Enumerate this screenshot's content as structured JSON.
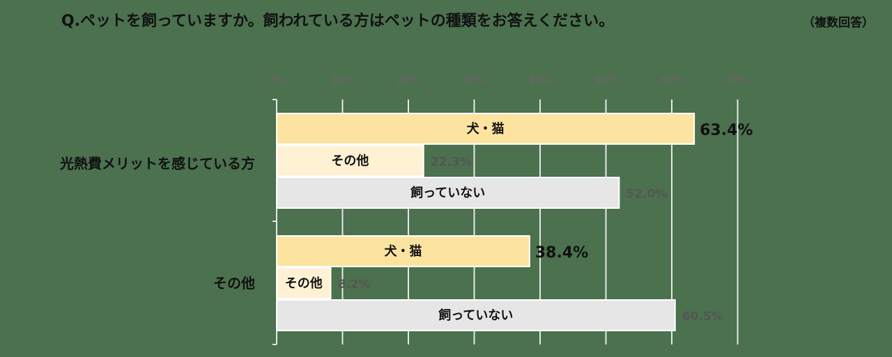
{
  "title": "Q.ペットを飼っていますか。飼われている方はペットの種類をお答えください。",
  "note": "（複数回答）",
  "chart_data": {
    "type": "bar",
    "orientation": "horizontal",
    "categories": [
      "光熱費メリットを感じている方",
      "その他"
    ],
    "series": [
      {
        "name": "犬・猫",
        "values": [
          63.4,
          38.4
        ],
        "color": "#fde3a0"
      },
      {
        "name": "その他",
        "values": [
          22.3,
          8.2
        ],
        "color": "#fff1d4"
      },
      {
        "name": "飼っていない",
        "values": [
          52.0,
          60.5
        ],
        "color": "#e6e6e6"
      }
    ],
    "xlim": [
      0,
      70
    ],
    "xticks": [
      "0%",
      "10%",
      "20%",
      "30%",
      "40%",
      "50%",
      "60%",
      "70%"
    ],
    "grid": true,
    "unit": "%"
  }
}
